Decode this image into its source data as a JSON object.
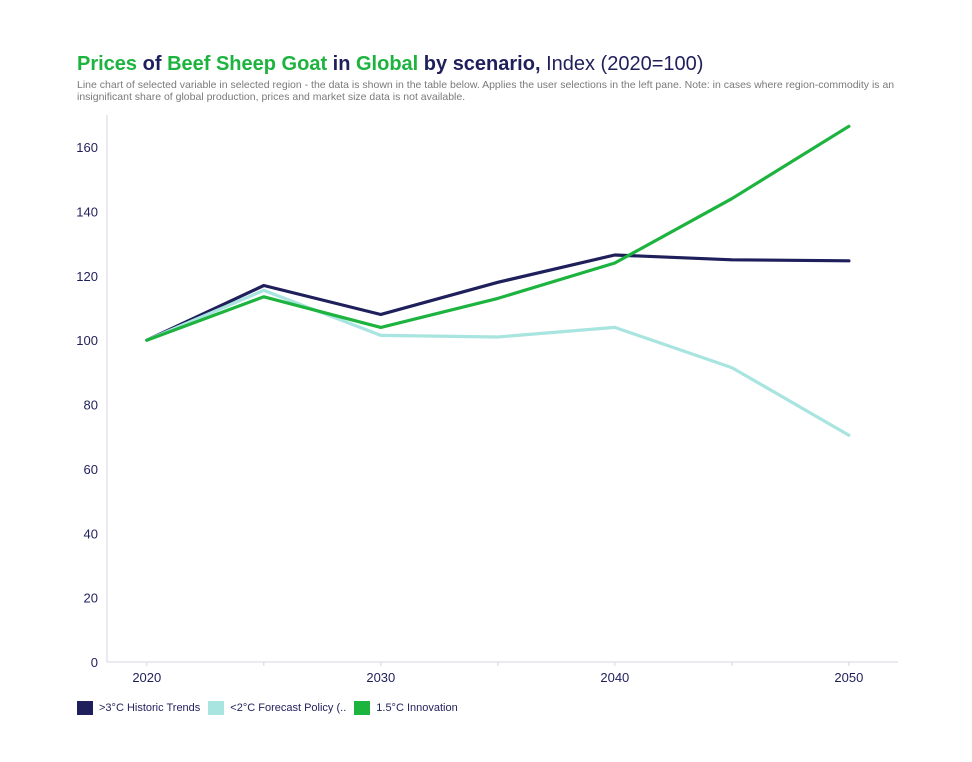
{
  "header": {
    "title_parts": [
      "Prices",
      " of ",
      "Beef Sheep Goat",
      " in ",
      "Global",
      " by scenario,",
      " Index (2020=100)"
    ],
    "subtitle": "Line chart of selected variable in selected region - the data is shown in the table below. Applies the user selections in the left pane. Note: in cases where region-commodity is an insignificant share of global production, prices and market size data is not available."
  },
  "chart_data": {
    "type": "line",
    "title": "Prices of Beef Sheep Goat in Global by scenario, Index (2020=100)",
    "x": [
      2020,
      2025,
      2030,
      2035,
      2040,
      2045,
      2050
    ],
    "x_ticks": [
      2020,
      2030,
      2040,
      2050
    ],
    "y_ticks": [
      0,
      20,
      40,
      60,
      80,
      100,
      120,
      140,
      160
    ],
    "ylim": [
      0,
      170
    ],
    "xlim": [
      2018.3,
      2052.1
    ],
    "grid": false,
    "legend_position": "bottom-left",
    "series": [
      {
        "name": ">3°C Historic Trends",
        "color": "#1f1f5c",
        "values": [
          100,
          117,
          108,
          118,
          126.5,
          125,
          124.7
        ]
      },
      {
        "name": "<2°C Forecast Policy (..",
        "color": "#a8e4e0",
        "values": [
          100,
          115.5,
          101.5,
          101,
          104,
          91.5,
          70.5
        ]
      },
      {
        "name": "1.5°C Innovation",
        "color": "#1db33f",
        "values": [
          100,
          113.5,
          104,
          113,
          124,
          144,
          166.5
        ]
      }
    ]
  }
}
